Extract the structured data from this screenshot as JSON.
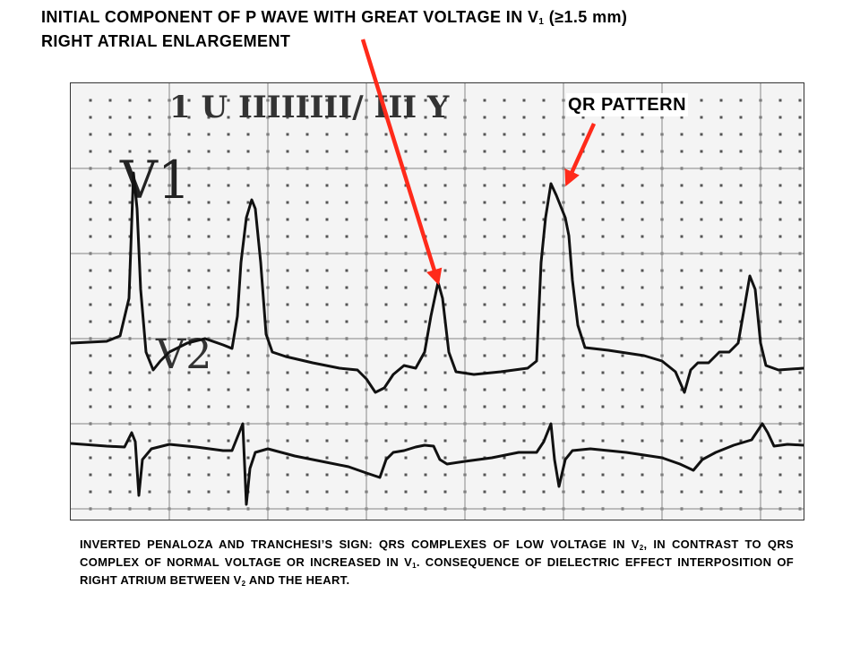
{
  "title": {
    "line1_prefix": "INITIAL COMPONENT OF P WAVE WITH GREAT VOLTAGE IN V",
    "line1_sub": "1",
    "line1_suffix": " (≥1.5 mm)",
    "line2": "RIGHT ATRIAL ENLARGEMENT"
  },
  "ecg": {
    "header_marks": "1 U   IIIIIIII/  III Y",
    "lead_top": "V1",
    "lead_bottom": "V2"
  },
  "annotations": {
    "qr_pattern": "QR PATTERN"
  },
  "caption": {
    "p1": "INVERTED PENALOZA AND TRANCHESI’S SIGN: QRS COMPLEXES OF LOW VOLTAGE IN V",
    "p1_sub": "2",
    "p2": ", IN CONTRAST TO QRS COMPLEX OF NORMAL VOLTAGE OR INCREASED IN V",
    "p2_sub": "1",
    "p3": ". CONSEQUENCE OF DIELECTRIC EFFECT INTERPOSITION OF RIGHT ATRIUM BETWEEN V",
    "p3_sub": "2",
    "p4": " AND THE HEART."
  },
  "colors": {
    "arrow": "#ff2a1a",
    "trace": "#111111",
    "grid": "#777777"
  }
}
